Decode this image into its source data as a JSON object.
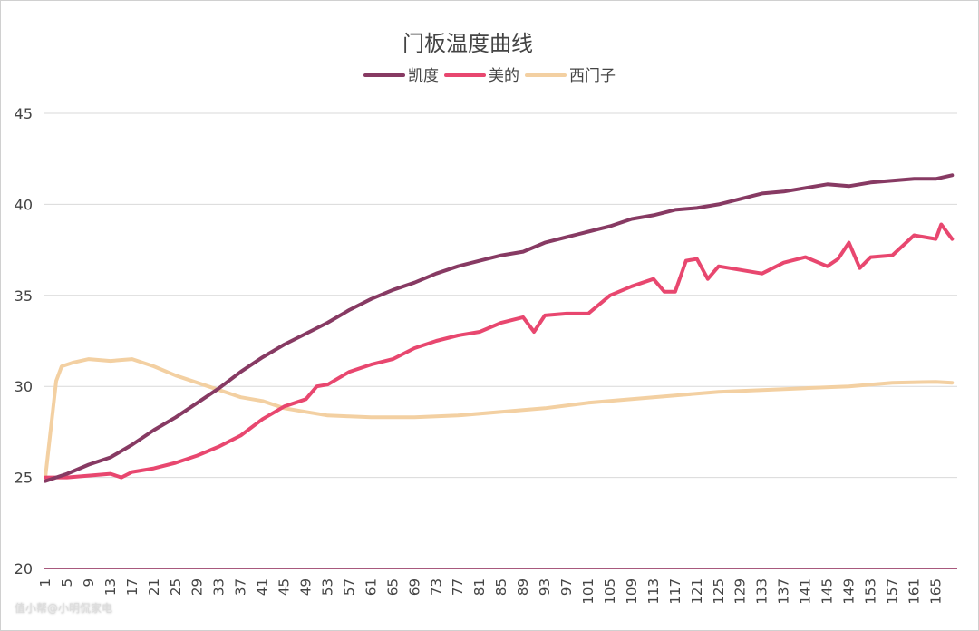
{
  "chart_data": {
    "type": "line",
    "title": "门板温度曲线",
    "xlabel": "",
    "ylabel": "",
    "ylim": [
      20,
      45
    ],
    "xlim": [
      1,
      168
    ],
    "yticks": [
      20,
      25,
      30,
      35,
      40,
      45
    ],
    "xticks": [
      1,
      5,
      9,
      13,
      17,
      21,
      25,
      29,
      33,
      37,
      41,
      45,
      49,
      53,
      57,
      61,
      65,
      69,
      73,
      77,
      81,
      85,
      89,
      93,
      97,
      101,
      105,
      109,
      113,
      117,
      121,
      125,
      129,
      133,
      137,
      141,
      145,
      149,
      153,
      157,
      161,
      165
    ],
    "grid": true,
    "legend_position": "top",
    "series": [
      {
        "name": "凯度",
        "color": "#873a63",
        "x": [
          1,
          5,
          9,
          13,
          17,
          21,
          25,
          29,
          33,
          37,
          41,
          45,
          49,
          53,
          57,
          61,
          65,
          69,
          73,
          77,
          81,
          85,
          89,
          93,
          97,
          101,
          105,
          109,
          113,
          117,
          121,
          125,
          129,
          133,
          137,
          141,
          145,
          149,
          153,
          157,
          161,
          165,
          168
        ],
        "values": [
          24.8,
          25.2,
          25.7,
          26.1,
          26.8,
          27.6,
          28.3,
          29.1,
          29.9,
          30.8,
          31.6,
          32.3,
          32.9,
          33.5,
          34.2,
          34.8,
          35.3,
          35.7,
          36.2,
          36.6,
          36.9,
          37.2,
          37.4,
          37.9,
          38.2,
          38.5,
          38.8,
          39.2,
          39.4,
          39.7,
          39.8,
          40.0,
          40.3,
          40.6,
          40.7,
          40.9,
          41.1,
          41.0,
          41.2,
          41.3,
          41.4,
          41.4,
          41.6
        ]
      },
      {
        "name": "美的",
        "color": "#e8476f",
        "x": [
          1,
          5,
          9,
          13,
          15,
          17,
          21,
          25,
          29,
          33,
          37,
          41,
          45,
          49,
          51,
          53,
          57,
          61,
          65,
          69,
          73,
          77,
          81,
          85,
          89,
          91,
          93,
          97,
          101,
          105,
          109,
          113,
          115,
          117,
          119,
          121,
          123,
          125,
          129,
          133,
          137,
          141,
          145,
          147,
          149,
          151,
          153,
          157,
          161,
          165,
          166,
          168
        ],
        "values": [
          25.0,
          25.0,
          25.1,
          25.2,
          25.0,
          25.3,
          25.5,
          25.8,
          26.2,
          26.7,
          27.3,
          28.2,
          28.9,
          29.3,
          30.0,
          30.1,
          30.8,
          31.2,
          31.5,
          32.1,
          32.5,
          32.8,
          33.0,
          33.5,
          33.8,
          33.0,
          33.9,
          34.0,
          34.0,
          35.0,
          35.5,
          35.9,
          35.2,
          35.2,
          36.9,
          37.0,
          35.9,
          36.6,
          36.4,
          36.2,
          36.8,
          37.1,
          36.6,
          37.0,
          37.9,
          36.5,
          37.1,
          37.2,
          38.3,
          38.1,
          38.9,
          38.1
        ]
      },
      {
        "name": "西门子",
        "color": "#f3d0a2",
        "x": [
          1,
          3,
          4,
          6,
          9,
          13,
          17,
          21,
          25,
          29,
          33,
          37,
          41,
          45,
          49,
          53,
          57,
          61,
          69,
          77,
          85,
          93,
          101,
          109,
          117,
          125,
          133,
          141,
          149,
          157,
          165,
          168
        ],
        "values": [
          25.0,
          30.3,
          31.1,
          31.3,
          31.5,
          31.4,
          31.5,
          31.1,
          30.6,
          30.2,
          29.8,
          29.4,
          29.2,
          28.8,
          28.6,
          28.4,
          28.35,
          28.3,
          28.3,
          28.4,
          28.6,
          28.8,
          29.1,
          29.3,
          29.5,
          29.7,
          29.8,
          29.9,
          30.0,
          30.2,
          30.25,
          30.2
        ]
      }
    ]
  },
  "watermark": "值小帮@小明侃家电"
}
